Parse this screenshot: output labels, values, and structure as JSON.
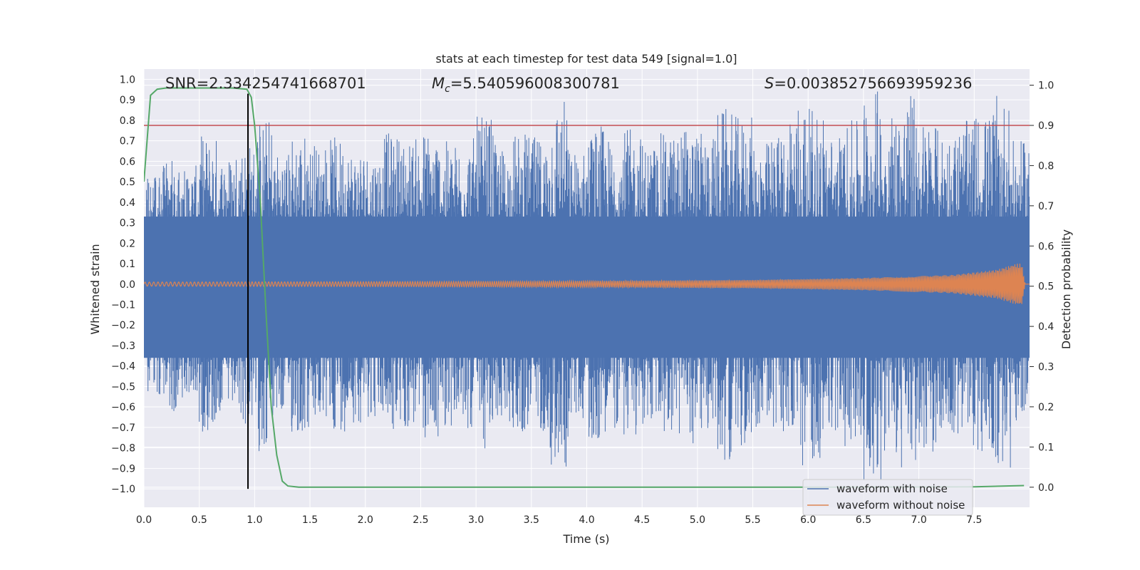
{
  "chart_data": {
    "type": "line",
    "title": "stats at each timestep for test data 549 [signal=1.0]",
    "xlabel": "Time (s)",
    "ylabel_left": "Whitened strain",
    "ylabel_right": "Detection probability",
    "xlim": [
      0.0,
      8.0
    ],
    "ylim_left": [
      -1.09,
      1.05
    ],
    "ylim_right": [
      -0.05,
      1.04
    ],
    "xticks": [
      0.0,
      0.5,
      1.0,
      1.5,
      2.0,
      2.5,
      3.0,
      3.5,
      4.0,
      4.5,
      5.0,
      5.5,
      6.0,
      6.5,
      7.0,
      7.5
    ],
    "xtick_labels": [
      "0.0",
      "0.5",
      "1.0",
      "1.5",
      "2.0",
      "2.5",
      "3.0",
      "3.5",
      "4.0",
      "4.5",
      "5.0",
      "5.5",
      "6.0",
      "6.5",
      "7.0",
      "7.5"
    ],
    "yticks_left": [
      1.0,
      0.9,
      0.8,
      0.7,
      0.6,
      0.5,
      0.4,
      0.3,
      0.2,
      0.1,
      0.0,
      -0.1,
      -0.2,
      -0.3,
      -0.4,
      -0.5,
      -0.6,
      -0.7,
      -0.8,
      -0.9,
      -1.0
    ],
    "ytick_labels_left": [
      "1.0",
      "0.9",
      "0.8",
      "0.7",
      "0.6",
      "0.5",
      "0.4",
      "0.3",
      "0.2",
      "0.1",
      "0.0",
      "−0.1",
      "−0.2",
      "−0.3",
      "−0.4",
      "−0.5",
      "−0.6",
      "−0.7",
      "−0.8",
      "−0.9",
      "−1.0"
    ],
    "yticks_right": [
      1.0,
      0.9,
      0.8,
      0.7,
      0.6,
      0.5,
      0.4,
      0.3,
      0.2,
      0.1,
      0.0
    ],
    "ytick_labels_right": [
      "1.0",
      "0.9",
      "0.8",
      "0.7",
      "0.6",
      "0.5",
      "0.4",
      "0.3",
      "0.2",
      "0.1",
      "0.0"
    ],
    "grid": true,
    "legend_location": "bottom-right",
    "series": [
      {
        "name": "waveform with noise",
        "axis": "left",
        "color": "#4c72b0",
        "kind": "noisy strain, envelope approx ±0.8 with spikes",
        "amplitude_samples": [
          0.55,
          0.62,
          0.58,
          0.73,
          0.64,
          0.7,
          0.82,
          0.66,
          0.75,
          0.7,
          0.72,
          0.68,
          0.66,
          0.74,
          0.72,
          0.77,
          0.7,
          0.72,
          0.82,
          0.68,
          0.74,
          0.72,
          0.92,
          0.66,
          0.78,
          0.72,
          0.76,
          0.7,
          0.74,
          0.78,
          0.74,
          0.86,
          0.82,
          0.7,
          0.74,
          0.92,
          0.86,
          0.74,
          0.8,
          0.96,
          0.88,
          0.94,
          0.82,
          0.76,
          0.8,
          0.84,
          0.92,
          0.7
        ]
      },
      {
        "name": "waveform without noise",
        "axis": "left",
        "color": "#dd8452",
        "kind": "chirp, amplitude grows toward merger near 7.95 s",
        "amplitude_points": [
          [
            0.0,
            0.01
          ],
          [
            2.0,
            0.012
          ],
          [
            4.0,
            0.015
          ],
          [
            5.5,
            0.02
          ],
          [
            6.5,
            0.03
          ],
          [
            7.3,
            0.045
          ],
          [
            7.7,
            0.07
          ],
          [
            7.88,
            0.1
          ],
          [
            7.93,
            0.1
          ],
          [
            7.96,
            0.0
          ],
          [
            8.0,
            0.0
          ]
        ]
      },
      {
        "name": "detection probability",
        "axis": "right",
        "color": "#55a868",
        "x": [
          0.0,
          0.06,
          0.12,
          0.2,
          0.4,
          0.6,
          0.8,
          0.93,
          0.97,
          1.0,
          1.05,
          1.1,
          1.15,
          1.2,
          1.25,
          1.3,
          1.4,
          2.0,
          4.0,
          6.0,
          7.5,
          7.95
        ],
        "y": [
          0.76,
          0.975,
          0.99,
          0.993,
          0.993,
          0.993,
          0.993,
          0.99,
          0.97,
          0.9,
          0.72,
          0.45,
          0.2,
          0.08,
          0.015,
          0.003,
          0.0,
          0.0,
          0.0,
          0.0,
          0.001,
          0.004
        ]
      }
    ],
    "threshold": {
      "axis": "right",
      "value": 0.9,
      "color": "#c44e52"
    },
    "marker_line": {
      "x": 0.94,
      "y_from": -1.0,
      "y_to": 0.93,
      "color": "#000000"
    },
    "annotations": {
      "snr": "SNR=2.334254741668701",
      "mc_symbol": "M",
      "mc_sub": "c",
      "mc_value": "=5.540596008300781",
      "s_symbol": "S",
      "s_value": "=0.003852756693959236"
    }
  }
}
